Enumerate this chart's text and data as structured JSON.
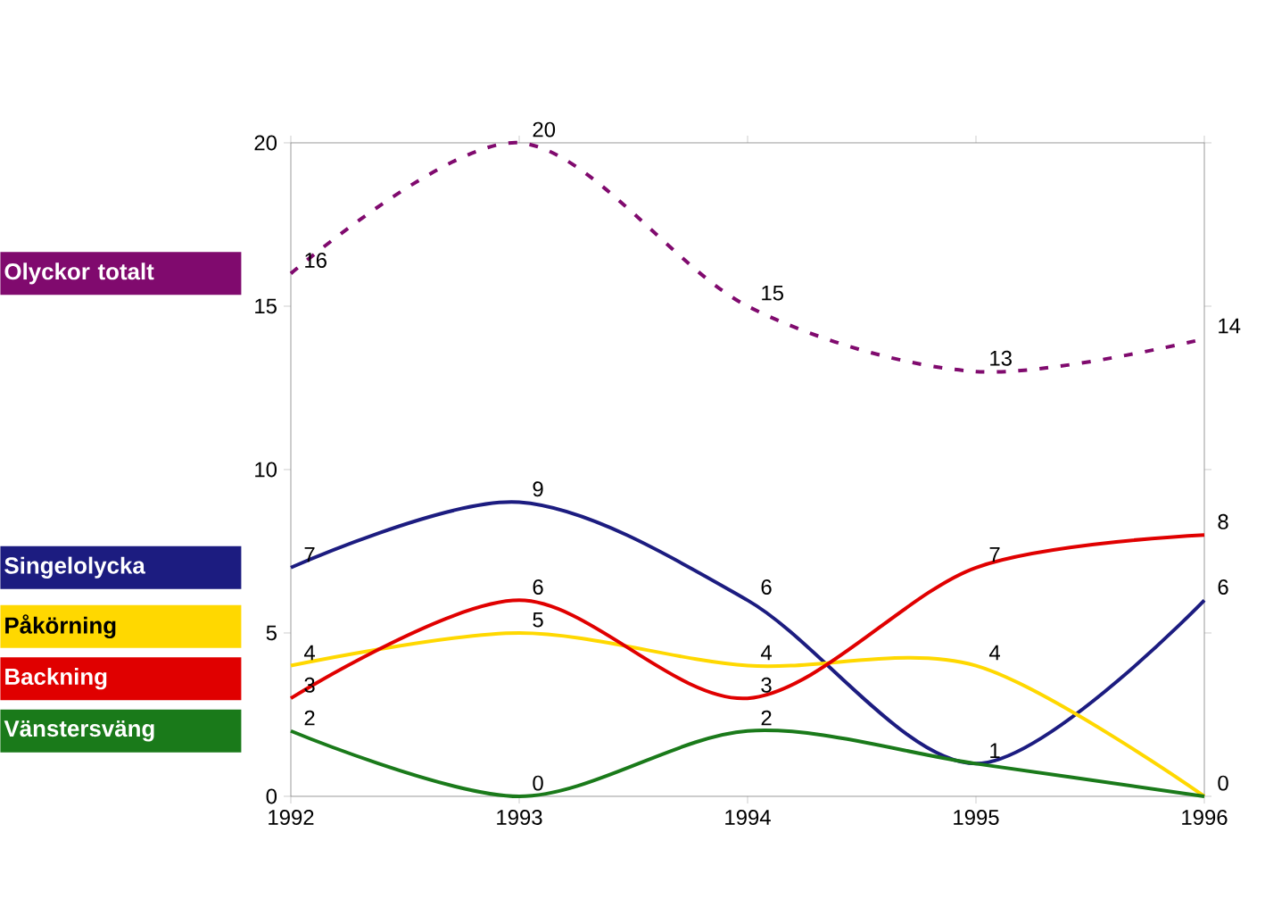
{
  "chart_data": {
    "type": "line",
    "categories": [
      "1992",
      "1993",
      "1994",
      "1995",
      "1996"
    ],
    "ylim": [
      0,
      20
    ],
    "yticks": [
      0,
      5,
      10,
      15,
      20
    ],
    "legend": "left",
    "grid": false,
    "marker": "none",
    "series": [
      {
        "name": "Olyckor totalt",
        "color": "#800a6e",
        "line_style": "dashed",
        "values": [
          16,
          20,
          15,
          13,
          14
        ],
        "value_labels": [
          "16",
          "20",
          "15",
          "13",
          "14"
        ]
      },
      {
        "name": "Singelolycka",
        "color": "#1c1c80",
        "line_style": "solid",
        "values": [
          7,
          9,
          6,
          1,
          6
        ],
        "value_labels": [
          "7",
          "9",
          "6",
          "1",
          "6"
        ]
      },
      {
        "name": "Påkörning",
        "color": "#ffd800",
        "line_style": "solid",
        "values": [
          4,
          5,
          4,
          4,
          0
        ],
        "value_labels": [
          "4",
          "5",
          "4",
          "4",
          "0"
        ]
      },
      {
        "name": "Backning",
        "color": "#e00000",
        "line_style": "solid",
        "values": [
          3,
          6,
          3,
          7,
          8
        ],
        "value_labels": [
          "3",
          "6",
          "3",
          "7",
          "8"
        ]
      },
      {
        "name": "Vänstersväng",
        "color": "#1a7a1a",
        "line_style": "solid",
        "values": [
          2,
          0,
          2,
          1,
          0
        ],
        "value_labels": [
          "2",
          "0",
          "2",
          null,
          null
        ]
      }
    ]
  }
}
